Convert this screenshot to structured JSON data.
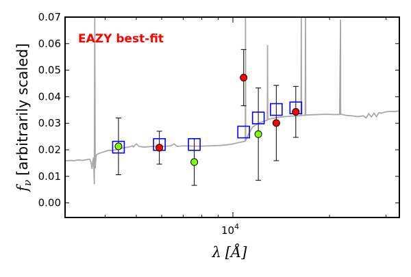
{
  "chart_data": {
    "type": "scatter",
    "annotation": "EAZY best-fit",
    "annotation_color": "#ff0000",
    "xlabel_symbol": "λ",
    "xlabel_unit": "[Å]",
    "ylabel_symbol": "f",
    "ylabel_subscript": "ν",
    "ylabel_text": "[arbitrarily scaled]",
    "x_scale": "log",
    "xlim": [
      3000,
      33000
    ],
    "ylim": [
      -0.0055,
      0.07
    ],
    "y_ticks": [
      0.0,
      0.01,
      0.02,
      0.03,
      0.04,
      0.05,
      0.06,
      0.07
    ],
    "y_tick_labels": [
      "0.00",
      "0.01",
      "0.02",
      "0.03",
      "0.04",
      "0.05",
      "0.06",
      "0.07"
    ],
    "x_major_tick": 10000,
    "x_major_tick_label_base": "10",
    "x_major_tick_label_exp": "4",
    "x_minor_ticks": [
      4000,
      5000,
      6000,
      7000,
      8000,
      9000,
      20000,
      30000
    ],
    "grid": false,
    "legend": "none",
    "template_color": "#a8a8a8",
    "model_color": "#0000ff",
    "template_spectrum": [
      [
        3000,
        0.0158
      ],
      [
        3100,
        0.016
      ],
      [
        3200,
        0.0159
      ],
      [
        3300,
        0.0162
      ],
      [
        3400,
        0.016
      ],
      [
        3500,
        0.0163
      ],
      [
        3580,
        0.0165
      ],
      [
        3620,
        0.015
      ],
      [
        3640,
        0.0128
      ],
      [
        3660,
        0.0155
      ],
      [
        3680,
        0.0172
      ],
      [
        3700,
        0.007
      ],
      [
        3712,
        0.07
      ],
      [
        3724,
        0.013
      ],
      [
        3750,
        0.018
      ],
      [
        3800,
        0.0185
      ],
      [
        3900,
        0.019
      ],
      [
        4000,
        0.0194
      ],
      [
        4100,
        0.0198
      ],
      [
        4200,
        0.0197
      ],
      [
        4300,
        0.02
      ],
      [
        4400,
        0.0203
      ],
      [
        4500,
        0.0206
      ],
      [
        4600,
        0.0208
      ],
      [
        4700,
        0.021
      ],
      [
        4800,
        0.0212
      ],
      [
        4862,
        0.0215
      ],
      [
        4900,
        0.0211
      ],
      [
        4960,
        0.0218
      ],
      [
        5007,
        0.0222
      ],
      [
        5100,
        0.0213
      ],
      [
        5300,
        0.021
      ],
      [
        5500,
        0.0212
      ],
      [
        5800,
        0.0214
      ],
      [
        6100,
        0.0213
      ],
      [
        6400,
        0.0215
      ],
      [
        6563,
        0.0222
      ],
      [
        6700,
        0.0213
      ],
      [
        7000,
        0.0215
      ],
      [
        7500,
        0.0214
      ],
      [
        8000,
        0.0214
      ],
      [
        8500,
        0.0215
      ],
      [
        9000,
        0.0216
      ],
      [
        9500,
        0.0218
      ],
      [
        10000,
        0.0222
      ],
      [
        10300,
        0.0226
      ],
      [
        10600,
        0.0229
      ],
      [
        10800,
        0.0231
      ],
      [
        10930,
        0.0233
      ],
      [
        10945,
        0.07
      ],
      [
        10960,
        0.0235
      ],
      [
        11200,
        0.026
      ],
      [
        11500,
        0.0285
      ],
      [
        12000,
        0.03
      ],
      [
        12500,
        0.0308
      ],
      [
        12800,
        0.0312
      ],
      [
        12820,
        0.0595
      ],
      [
        12840,
        0.0314
      ],
      [
        13200,
        0.0318
      ],
      [
        13800,
        0.0322
      ],
      [
        14500,
        0.0325
      ],
      [
        15200,
        0.0327
      ],
      [
        15800,
        0.0328
      ],
      [
        16300,
        0.0329
      ],
      [
        16330,
        0.07
      ],
      [
        16360,
        0.033
      ],
      [
        16800,
        0.033
      ],
      [
        16830,
        0.07
      ],
      [
        16860,
        0.0331
      ],
      [
        17600,
        0.0332
      ],
      [
        18500,
        0.0333
      ],
      [
        19500,
        0.0334
      ],
      [
        20500,
        0.0333
      ],
      [
        21500,
        0.0333
      ],
      [
        21640,
        0.069
      ],
      [
        21660,
        0.0334
      ],
      [
        22500,
        0.033
      ],
      [
        23500,
        0.0328
      ],
      [
        24500,
        0.0325
      ],
      [
        25500,
        0.0328
      ],
      [
        26000,
        0.032
      ],
      [
        26500,
        0.0336
      ],
      [
        27000,
        0.0324
      ],
      [
        27500,
        0.0338
      ],
      [
        28000,
        0.0325
      ],
      [
        28500,
        0.034
      ],
      [
        29000,
        0.0338
      ],
      [
        30000,
        0.0343
      ],
      [
        31000,
        0.0345
      ],
      [
        32000,
        0.0344
      ],
      [
        33000,
        0.0347
      ]
    ],
    "series": [
      {
        "marker": "circle",
        "color": "#7fff00",
        "points": [
          {
            "x": 4400,
            "y": 0.0213,
            "err": 0.0107
          },
          {
            "x": 7580,
            "y": 0.0154,
            "err": 0.0088
          },
          {
            "x": 12000,
            "y": 0.0259,
            "err": 0.0174
          }
        ]
      },
      {
        "marker": "circle",
        "color": "#ff0000",
        "points": [
          {
            "x": 5900,
            "y": 0.0208,
            "err": 0.0062
          },
          {
            "x": 10800,
            "y": 0.0472,
            "err": 0.0106
          },
          {
            "x": 13650,
            "y": 0.0301,
            "err": 0.0142
          },
          {
            "x": 15700,
            "y": 0.0343,
            "err": 0.0096
          }
        ]
      },
      {
        "marker": "square",
        "color": "#0000ff",
        "points": [
          {
            "x": 4400,
            "y": 0.021
          },
          {
            "x": 5900,
            "y": 0.022
          },
          {
            "x": 7580,
            "y": 0.022
          },
          {
            "x": 10800,
            "y": 0.0267
          },
          {
            "x": 12000,
            "y": 0.032
          },
          {
            "x": 13650,
            "y": 0.0352
          },
          {
            "x": 15700,
            "y": 0.0358
          }
        ]
      }
    ]
  }
}
